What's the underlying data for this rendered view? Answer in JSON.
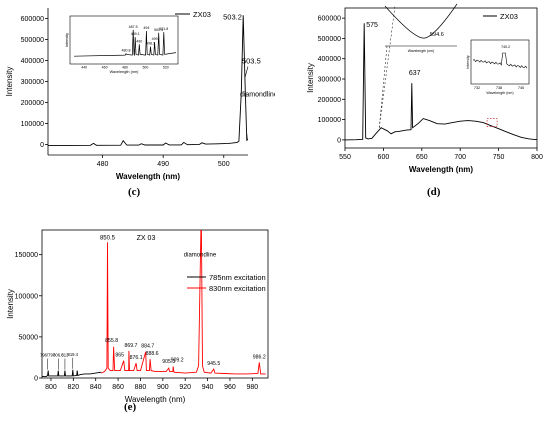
{
  "chart_data": [
    {
      "panel": "(c)",
      "type": "line",
      "xlabel": "Wavelength (nm)",
      "ylabel": "Intensity",
      "xlim": [
        471,
        504
      ],
      "ylim": [
        -50000,
        650000
      ],
      "x_ticks": [
        480,
        490,
        500
      ],
      "y_ticks": [
        0,
        100000,
        200000,
        300000,
        400000,
        500000,
        600000
      ],
      "y_tick_labels": [
        "0",
        "100000",
        "200000",
        "300000",
        "400000",
        "500000",
        "600000"
      ],
      "legend": [
        "ZX03"
      ],
      "series": [
        {
          "name": "ZX03",
          "color": "#000000",
          "x": [
            471,
            478,
            478.5,
            479,
            483,
            483.4,
            484,
            486,
            486.4,
            487,
            490,
            490.4,
            491,
            493,
            493.4,
            494,
            496,
            496.4,
            497,
            499,
            500.7,
            501.2,
            501.7,
            502.2,
            502.5,
            502.9,
            503.2,
            503.5,
            503.8,
            504,
            504.4,
            504.7,
            505.2,
            505.5,
            506,
            506.5,
            507
          ],
          "y": [
            -5000,
            -4000,
            5000,
            -4000,
            -3500,
            18000,
            -3000,
            -3000,
            4000,
            -2500,
            -2500,
            7000,
            -2000,
            -2000,
            10000,
            -1000,
            500,
            8000,
            2000,
            3500,
            5000,
            6000,
            8000,
            10000,
            15000,
            250000,
            615000,
            300000,
            20000,
            25000,
            200000,
            30000,
            40000,
            50000,
            60000,
            80000,
            120000
          ]
        }
      ],
      "annotations": [
        {
          "text": "503.2",
          "x": 503.2,
          "y": 615000
        },
        {
          "text": "503.5",
          "x": 503.5,
          "y": 300000
        },
        {
          "text": "diamondline",
          "x": 504.4,
          "y": 200000
        }
      ],
      "inset": {
        "xlabel": "Wavelength (nm)",
        "ylabel": "Intensity",
        "x_ticks": [
          440,
          460,
          480,
          500,
          520
        ],
        "xlim": [
          430,
          530
        ],
        "peaks": [
          {
            "text": "480.8",
            "x": 481,
            "y": 0.12
          },
          {
            "text": "487.5",
            "x": 488,
            "y": 0.78
          },
          {
            "text": "489.1",
            "x": 490,
            "y": 0.58
          },
          {
            "text": "490",
            "x": 494,
            "y": 0.38
          },
          {
            "text": "494",
            "x": 501,
            "y": 0.75
          },
          {
            "text": "498.3",
            "x": 505,
            "y": 0.32
          },
          {
            "text": "499",
            "x": 509,
            "y": 0.44
          },
          {
            "text": "500.4",
            "x": 513,
            "y": 0.7
          },
          {
            "text": "501.8",
            "x": 518,
            "y": 0.72
          }
        ]
      }
    },
    {
      "panel": "(d)",
      "type": "line",
      "xlabel": "Wavelength (nm)",
      "ylabel": "Intensity",
      "xlim": [
        550,
        800
      ],
      "ylim": [
        -40000,
        650000
      ],
      "x_ticks": [
        550,
        600,
        650,
        700,
        750,
        800
      ],
      "y_ticks": [
        0,
        100000,
        200000,
        300000,
        400000,
        500000,
        600000
      ],
      "y_tick_labels": [
        "0",
        "100000",
        "200000",
        "300000",
        "400000",
        "500000",
        "600000"
      ],
      "legend": [
        "ZX03"
      ],
      "series": [
        {
          "name": "ZX03",
          "color": "#000000",
          "x": [
            550,
            565,
            573,
            575,
            577,
            580,
            585,
            590,
            597,
            605,
            610,
            615,
            620,
            630,
            636,
            637,
            638,
            645,
            652,
            660,
            670,
            680,
            690,
            700,
            710,
            720,
            730,
            740,
            750,
            760,
            770,
            780,
            790,
            800
          ],
          "y": [
            0,
            1000,
            3000,
            575000,
            10000,
            5000,
            8000,
            30000,
            60000,
            45000,
            30000,
            40000,
            42000,
            48000,
            50000,
            280000,
            60000,
            80000,
            105000,
            95000,
            80000,
            78000,
            85000,
            92000,
            95000,
            92000,
            85000,
            70000,
            55000,
            40000,
            25000,
            12000,
            5000,
            1000
          ]
        }
      ],
      "annotations": [
        {
          "text": "575",
          "x": 575,
          "y": 575000
        },
        {
          "text": "637",
          "x": 637,
          "y": 280000
        }
      ],
      "inset_left": {
        "xlabel": "Wavelength (nm)",
        "peaks": [
          {
            "text": "594.6",
            "x": 0.45,
            "y": 0.3
          }
        ]
      },
      "inset_right": {
        "ylabel": "Intensity",
        "xlabel": "Wavelength (nm)",
        "x_ticks": [
          "732",
          "738",
          "745"
        ],
        "peaks": [
          {
            "text": "740.2",
            "x": 0.58,
            "y": 0.75
          }
        ]
      }
    },
    {
      "panel": "(e)",
      "type": "line",
      "title": "ZX 03",
      "xlabel": "Wavelength (nm)",
      "ylabel": "Intensity",
      "xlim": [
        792,
        994
      ],
      "ylim": [
        0,
        180000
      ],
      "x_ticks": [
        800,
        820,
        840,
        860,
        880,
        900,
        920,
        940,
        960,
        980
      ],
      "y_ticks": [
        0,
        50000,
        100000,
        150000
      ],
      "y_tick_labels": [
        "0",
        "50000",
        "100000",
        "150000"
      ],
      "legend": [
        "785nm excitation",
        "830nm excitation"
      ],
      "series": [
        {
          "name": "785nm excitation",
          "color": "#000000",
          "x": [
            792,
            796,
            797,
            797.5,
            798,
            806,
            806.6,
            807,
            812,
            812.5,
            813,
            819,
            819.5,
            820,
            823,
            823.5,
            824,
            826,
            830,
            835,
            840,
            845
          ],
          "y": [
            2000,
            2000,
            3000,
            9000,
            2500,
            2500,
            9000,
            2500,
            2500,
            9000,
            2500,
            2500,
            10000,
            2500,
            3000,
            9000,
            3000,
            4000,
            5000,
            5000,
            6000,
            7000
          ]
        },
        {
          "name": "830nm excitation",
          "color": "#ff0000",
          "x": [
            845,
            848,
            850,
            850.5,
            851.2,
            853,
            855.5,
            856,
            857,
            862,
            865,
            866,
            869.5,
            869.7,
            870.2,
            874,
            876.1,
            877,
            880,
            884.7,
            885.3,
            888,
            888.6,
            889.5,
            893,
            899,
            900,
            903,
            905.3,
            906,
            909,
            909.2,
            910,
            920,
            930,
            932,
            934,
            934.5,
            935.5,
            937,
            943,
            945.5,
            946.5,
            955,
            965,
            975,
            985,
            986.2,
            987.5,
            992
          ],
          "y": [
            6000,
            8000,
            12000,
            165000,
            12000,
            9000,
            9000,
            38000,
            9000,
            9000,
            21000,
            9000,
            9000,
            33000,
            9000,
            9000,
            18000,
            9000,
            9000,
            32000,
            9000,
            9000,
            23000,
            9000,
            8000,
            8000,
            8000,
            8000,
            12000,
            8000,
            8000,
            14000,
            7000,
            6000,
            7000,
            15000,
            180000,
            180000,
            15000,
            7000,
            6000,
            11000,
            6000,
            5500,
            5000,
            5000,
            5500,
            19000,
            5000,
            5000
          ]
        }
      ],
      "annotations": [
        {
          "text": "850.5",
          "x": 850.5,
          "y": 165000
        },
        {
          "text": "diamondline",
          "x": 935,
          "y": 150000
        },
        {
          "text": "796/797",
          "x": 797,
          "y": 9000
        },
        {
          "text": "806.6",
          "x": 806.6,
          "y": 9000
        },
        {
          "text": "813",
          "x": 812.5,
          "y": 9000
        },
        {
          "text": "819.4",
          "x": 819.5,
          "y": 10000
        },
        {
          "text": "855.8",
          "x": 856,
          "y": 38000
        },
        {
          "text": "865",
          "x": 865,
          "y": 21000
        },
        {
          "text": "869.7",
          "x": 869.7,
          "y": 33000
        },
        {
          "text": "876.1",
          "x": 876.1,
          "y": 18000
        },
        {
          "text": "884.7",
          "x": 884.7,
          "y": 32000
        },
        {
          "text": "888.6",
          "x": 888.6,
          "y": 23000
        },
        {
          "text": "905.3",
          "x": 905.3,
          "y": 12000
        },
        {
          "text": "909.2",
          "x": 909.2,
          "y": 14000
        },
        {
          "text": "945.5",
          "x": 945.5,
          "y": 11000
        },
        {
          "text": "986.2",
          "x": 986.2,
          "y": 19000
        }
      ]
    }
  ]
}
